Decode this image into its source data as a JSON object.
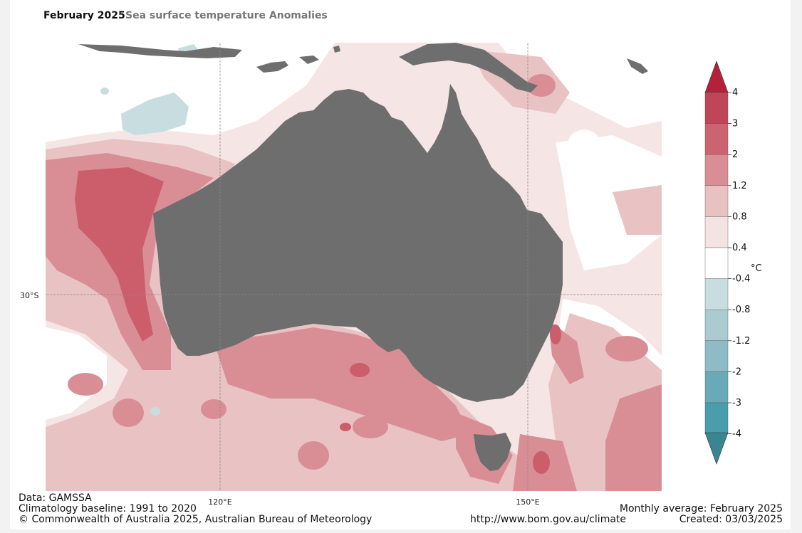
{
  "title": "February 2025",
  "subtitle": "Sea surface temperature Anomalies",
  "axis_labels": {
    "lat_30s": "30°S",
    "lon_120e": "120°E",
    "lon_150e": "150°E"
  },
  "colorbar": {
    "unit": "°C",
    "labels": [
      "4",
      "3",
      "2",
      "1.2",
      "0.8",
      "0.4",
      "-0.4",
      "-0.8",
      "-1.2",
      "-2",
      "-3",
      "-4"
    ],
    "colors": {
      "over": "#b5203a",
      "bins": [
        "#c04558",
        "#cb6370",
        "#d98e96",
        "#e8c1c1",
        "#f5e3e3",
        "#ffffff",
        "#c8dde0",
        "#aacbd0",
        "#8ebcc6",
        "#6aaab6",
        "#4a9daa"
      ],
      "under": "#3a8592"
    }
  },
  "colors": {
    "land": "#6e6e6e",
    "sea_anomaly_strong": "#cc5e6c",
    "sea_anomaly_mid": "#d98e96",
    "sea_anomaly_light": "#e9c3c3",
    "sea_anomaly_faint": "#f6e5e5",
    "lake_cool": "#c7dde0"
  },
  "footer": {
    "data_source": "Data: GAMSSA",
    "baseline": "Climatology baseline: 1991 to 2020",
    "copyright": "© Commonwealth of Australia 2025, Australian Bureau of Meteorology",
    "url": "http://www.bom.gov.au/climate",
    "period": "Monthly average: February 2025",
    "created": "Created: 03/03/2025"
  }
}
